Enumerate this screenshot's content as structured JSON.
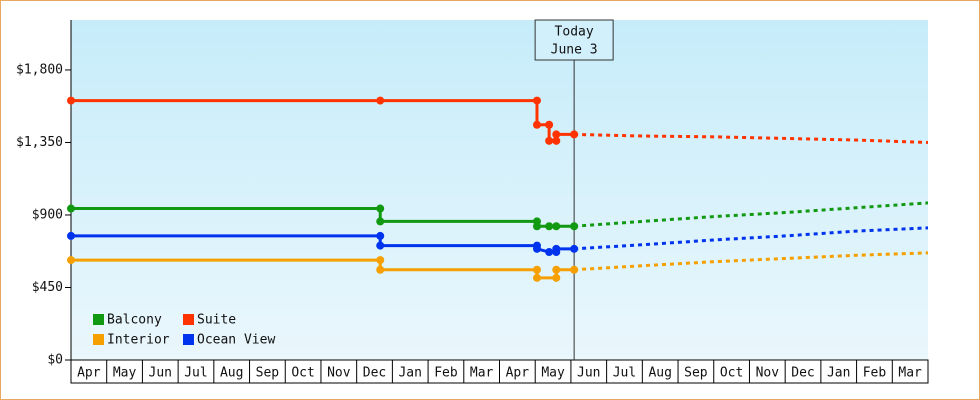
{
  "chart_data": {
    "type": "step-line",
    "ylim": [
      0,
      2110
    ],
    "yticks": [
      {
        "value": 0,
        "label": "$0"
      },
      {
        "value": 450,
        "label": "$450"
      },
      {
        "value": 900,
        "label": "$900"
      },
      {
        "value": 1350,
        "label": "$1,350"
      },
      {
        "value": 1800,
        "label": "$1,800"
      }
    ],
    "grid": false,
    "xlim": [
      0,
      24
    ],
    "months": [
      "Apr",
      "May",
      "Jun",
      "Jul",
      "Aug",
      "Sep",
      "Oct",
      "Nov",
      "Dec",
      "Jan",
      "Feb",
      "Mar",
      "Apr",
      "May",
      "Jun",
      "Jul",
      "Aug",
      "Sep",
      "Oct",
      "Nov",
      "Dec",
      "Jan",
      "Feb",
      "Mar"
    ],
    "today": {
      "x": 14.09,
      "label": [
        "Today",
        "June 3"
      ]
    },
    "legend": "bottom-left",
    "series": [
      {
        "name": "Balcony",
        "color": "#119911",
        "x": [
          0,
          8.66,
          8.66,
          13.05,
          13.05,
          13.39,
          13.59,
          14.09
        ],
        "values": [
          940,
          940,
          860,
          860,
          830,
          830,
          830,
          830
        ],
        "forecast_x": [
          14.09,
          16,
          18,
          20,
          22,
          24
        ],
        "forecast_values": [
          830,
          860,
          890,
          915,
          945,
          975
        ]
      },
      {
        "name": "Suite",
        "color": "#ff3300",
        "x": [
          0,
          8.66,
          13.05,
          13.05,
          13.39,
          13.39,
          13.59,
          13.59,
          14.09
        ],
        "values": [
          1610,
          1610,
          1610,
          1460,
          1460,
          1360,
          1360,
          1400,
          1400
        ],
        "forecast_x": [
          14.09,
          16,
          18,
          20,
          22,
          24
        ],
        "forecast_values": [
          1400,
          1390,
          1385,
          1375,
          1365,
          1350
        ]
      },
      {
        "name": "Interior",
        "color": "#f5a000",
        "x": [
          0,
          8.66,
          8.66,
          13.05,
          13.05,
          13.59,
          13.59,
          14.09
        ],
        "values": [
          620,
          620,
          560,
          560,
          510,
          510,
          560,
          560
        ],
        "forecast_x": [
          14.09,
          16,
          18,
          20,
          22,
          24
        ],
        "forecast_values": [
          560,
          585,
          610,
          630,
          650,
          665
        ]
      },
      {
        "name": "Ocean View",
        "color": "#0033ee",
        "x": [
          0,
          8.66,
          8.66,
          13.05,
          13.05,
          13.39,
          13.59,
          13.59,
          14.09
        ],
        "values": [
          770,
          770,
          710,
          710,
          690,
          670,
          670,
          690,
          690
        ],
        "forecast_x": [
          14.09,
          16,
          18,
          20,
          22,
          24
        ],
        "forecast_values": [
          690,
          715,
          745,
          770,
          800,
          820
        ]
      }
    ]
  }
}
